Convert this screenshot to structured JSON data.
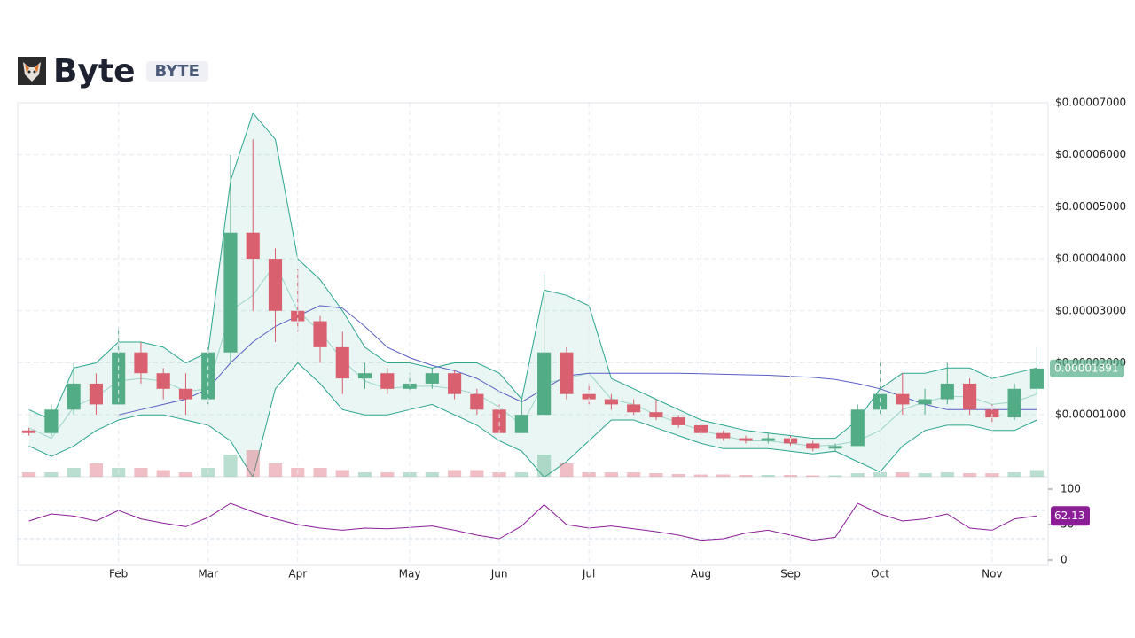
{
  "header": {
    "title": "Byte",
    "symbol": "BYTE"
  },
  "chart_data": {
    "type": "candlestick",
    "categories": [
      null,
      null,
      null,
      null,
      "Feb",
      null,
      null,
      null,
      "Mar",
      null,
      null,
      null,
      "Apr",
      null,
      null,
      null,
      null,
      "May",
      null,
      null,
      null,
      "Jun",
      null,
      null,
      null,
      "Jul",
      null,
      null,
      null,
      null,
      "Aug",
      null,
      null,
      null,
      "Sep",
      null,
      null,
      null,
      "Oct",
      null,
      null,
      null,
      null,
      "Nov",
      null,
      null
    ],
    "open": [
      7e-06,
      6.5e-06,
      1.1e-05,
      1.6e-05,
      1.2e-05,
      2.2e-05,
      1.8e-05,
      1.5e-05,
      1.3e-05,
      2.2e-05,
      4.5e-05,
      4e-05,
      3e-05,
      2.8e-05,
      2.3e-05,
      1.7e-05,
      1.8e-05,
      1.5e-05,
      1.6e-05,
      1.8e-05,
      1.4e-05,
      1.1e-05,
      6.5e-06,
      1e-05,
      2.2e-05,
      1.4e-05,
      1.3e-05,
      1.2e-05,
      1.05e-05,
      9.5e-06,
      8e-06,
      6.5e-06,
      5.5e-06,
      5e-06,
      5.5e-06,
      4.5e-06,
      3.5e-06,
      4e-06,
      1.1e-05,
      1.4e-05,
      1.2e-05,
      1.3e-05,
      1.6e-05,
      1.1e-05,
      9.5e-06,
      1.5e-05
    ],
    "high": [
      7.5e-06,
      1.2e-05,
      2e-05,
      1.8e-05,
      2.7e-05,
      2.4e-05,
      1.9e-05,
      1.8e-05,
      2.3e-05,
      6e-05,
      6.3e-05,
      4.2e-05,
      3.8e-05,
      2.9e-05,
      2.6e-05,
      2e-05,
      1.9e-05,
      1.8e-05,
      1.9e-05,
      1.85e-05,
      1.5e-05,
      1.2e-05,
      1.3e-05,
      3.7e-05,
      2.3e-05,
      1.6e-05,
      1.4e-05,
      1.3e-05,
      1.3e-05,
      1e-05,
      9e-06,
      7e-06,
      6e-06,
      6.5e-06,
      6e-06,
      5e-06,
      4.5e-06,
      1.2e-05,
      2e-05,
      1.8e-05,
      1.5e-05,
      2e-05,
      1.7e-05,
      1.2e-05,
      1.6e-05,
      2.3e-05
    ],
    "low": [
      6e-06,
      6e-06,
      1e-05,
      1e-05,
      1.2e-05,
      1.6e-05,
      1.3e-05,
      1e-05,
      1.2e-05,
      2e-05,
      3e-05,
      2.4e-05,
      2.6e-05,
      2e-05,
      1.4e-05,
      1.5e-05,
      1.4e-05,
      1.4e-05,
      1.5e-05,
      1.3e-05,
      1e-05,
      6.5e-06,
      6.5e-06,
      1e-05,
      1.3e-05,
      1.2e-05,
      1.1e-05,
      1e-05,
      9e-06,
      7.5e-06,
      6e-06,
      5e-06,
      4.5e-06,
      4.5e-06,
      4e-06,
      3e-06,
      3e-06,
      4e-06,
      1e-05,
      1e-05,
      1e-05,
      1.2e-05,
      1e-05,
      8.5e-06,
      9e-06,
      1.4e-05
    ],
    "close": [
      6.5e-06,
      1.1e-05,
      1.6e-05,
      1.2e-05,
      2.2e-05,
      1.8e-05,
      1.5e-05,
      1.3e-05,
      2.2e-05,
      4.5e-05,
      4e-05,
      3e-05,
      2.8e-05,
      2.3e-05,
      1.7e-05,
      1.8e-05,
      1.5e-05,
      1.6e-05,
      1.8e-05,
      1.4e-05,
      1.1e-05,
      6.5e-06,
      1e-05,
      2.2e-05,
      1.4e-05,
      1.3e-05,
      1.2e-05,
      1.05e-05,
      9.5e-06,
      8e-06,
      6.5e-06,
      5.5e-06,
      5e-06,
      5.5e-06,
      4.5e-06,
      3.5e-06,
      4e-06,
      1.1e-05,
      1.4e-05,
      1.2e-05,
      1.3e-05,
      1.6e-05,
      1.1e-05,
      9.5e-06,
      1.5e-05,
      1.891e-05
    ],
    "up_color": "#52ac86",
    "down_color": "#d9606f",
    "bands": {
      "color": "#2aa58e",
      "fill": "rgba(42,165,142,0.1)",
      "upper": [
        1.1e-05,
        9e-06,
        1.9e-05,
        2e-05,
        2.4e-05,
        2.4e-05,
        2.3e-05,
        2e-05,
        2.2e-05,
        5.5e-05,
        6.8e-05,
        6.3e-05,
        4e-05,
        3.6e-05,
        3e-05,
        2.3e-05,
        2e-05,
        2e-05,
        1.9e-05,
        2e-05,
        2e-05,
        1.8e-05,
        1.3e-05,
        3.4e-05,
        3.3e-05,
        3.1e-05,
        1.7e-05,
        1.5e-05,
        1.3e-05,
        1.1e-05,
        9e-06,
        8e-06,
        7e-06,
        6.5e-06,
        6e-06,
        5.5e-06,
        5.5e-06,
        9e-06,
        1.5e-05,
        1.8e-05,
        1.8e-05,
        1.9e-05,
        1.9e-05,
        1.7e-05,
        1.8e-05,
        1.9e-05
      ],
      "middle": [
        7.5e-06,
        5.5e-06,
        1.15e-05,
        1.35e-05,
        1.65e-05,
        1.7e-05,
        1.65e-05,
        1.45e-05,
        1.5e-05,
        3e-05,
        3.3e-05,
        3.9e-05,
        3e-05,
        2.6e-05,
        2.05e-05,
        1.65e-05,
        1.5e-05,
        1.55e-05,
        1.55e-05,
        1.5e-05,
        1.4e-05,
        1.15e-05,
        8e-06,
        1.6e-05,
        1.7e-05,
        1.8e-05,
        1.3e-05,
        1.2e-05,
        1e-05,
        8.5e-06,
        7e-06,
        6e-06,
        5e-06,
        5e-06,
        4.5e-06,
        4e-06,
        4.2e-06,
        5e-06,
        7e-06,
        1.1e-05,
        1.25e-05,
        1.35e-05,
        1.35e-05,
        1.2e-05,
        1.25e-05,
        1.4e-05
      ],
      "lower": [
        4e-06,
        2e-06,
        4e-06,
        7e-06,
        9e-06,
        1e-05,
        1e-05,
        9e-06,
        8e-06,
        5e-06,
        -2e-06,
        1.5e-05,
        2e-05,
        1.6e-05,
        1.1e-05,
        1e-05,
        1e-05,
        1.1e-05,
        1.2e-05,
        1e-05,
        8e-06,
        5e-06,
        3e-06,
        -2e-06,
        1e-06,
        5e-06,
        9e-06,
        9e-06,
        7.5e-06,
        6e-06,
        4.5e-06,
        3.5e-06,
        3.5e-06,
        3.5e-06,
        3e-06,
        2.5e-06,
        3e-06,
        1e-06,
        -1e-06,
        4e-06,
        7e-06,
        8e-06,
        8e-06,
        7e-06,
        7e-06,
        9e-06
      ]
    },
    "ma": {
      "color": "#5a5fc4",
      "values": [
        null,
        null,
        null,
        null,
        1e-05,
        1.1e-05,
        1.2e-05,
        1.3e-05,
        1.5e-05,
        2e-05,
        2.4e-05,
        2.7e-05,
        2.9e-05,
        3.1e-05,
        3.05e-05,
        2.7e-05,
        2.3e-05,
        2.1e-05,
        1.95e-05,
        1.85e-05,
        1.7e-05,
        1.45e-05,
        1.25e-05,
        1.5e-05,
        1.75e-05,
        1.8e-05,
        1.8e-05,
        1.8e-05,
        1.8e-05,
        1.8e-05,
        1.79e-05,
        1.78e-05,
        1.77e-05,
        1.76e-05,
        1.74e-05,
        1.72e-05,
        1.68e-05,
        1.6e-05,
        1.5e-05,
        1.35e-05,
        1.2e-05,
        1.1e-05,
        1.1e-05,
        1.1e-05,
        1.1e-05,
        1.1e-05
      ]
    },
    "volume": [
      1,
      1,
      2,
      3,
      2,
      2,
      1.5,
      1,
      2,
      5,
      6,
      3,
      2,
      2,
      1.5,
      1,
      1,
      1,
      1,
      1.5,
      1.5,
      1,
      1,
      5,
      3,
      1,
      1,
      1,
      0.8,
      0.6,
      0.5,
      0.5,
      0.4,
      0.4,
      0.4,
      0.3,
      0.3,
      0.8,
      1,
      1,
      0.8,
      1,
      0.8,
      0.8,
      1,
      1.5
    ],
    "ylim": [
      -1.9e-06,
      7e-05
    ],
    "yticks": [
      {
        "value": 1e-05,
        "label": "$0.00001000"
      },
      {
        "value": 2e-05,
        "label": "$0.00002000"
      },
      {
        "value": 3e-05,
        "label": "$0.00003000"
      },
      {
        "value": 4e-05,
        "label": "$0.00004000"
      },
      {
        "value": 5e-05,
        "label": "$0.00005000"
      },
      {
        "value": 6e-05,
        "label": "$0.00006000"
      },
      {
        "value": 7e-05,
        "label": "$0.00007000"
      }
    ],
    "grid": true,
    "rsi": {
      "color": "#8b1d97",
      "values": [
        55,
        65,
        62,
        55,
        70,
        58,
        52,
        47,
        60,
        80,
        68,
        58,
        50,
        45,
        42,
        45,
        44,
        46,
        48,
        42,
        35,
        30,
        48,
        78,
        50,
        45,
        48,
        44,
        40,
        35,
        28,
        30,
        38,
        42,
        35,
        28,
        32,
        80,
        65,
        55,
        58,
        65,
        45,
        42,
        58,
        62.13
      ],
      "ylim": [
        -7.5,
        117.5
      ],
      "yticks": [
        0,
        50,
        100
      ],
      "levels": [
        30,
        70
      ]
    }
  }
}
